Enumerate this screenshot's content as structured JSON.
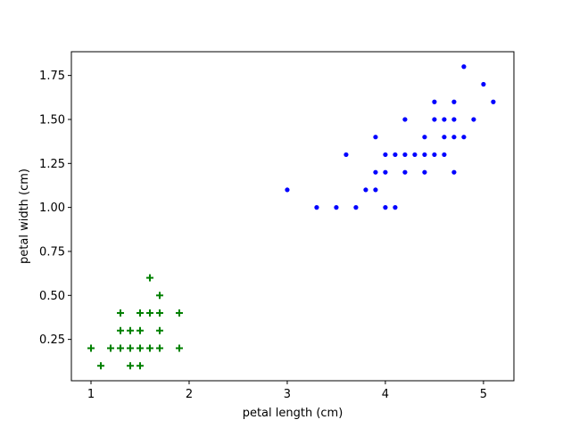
{
  "chart_data": {
    "type": "scatter",
    "title": "",
    "xlabel": "petal length (cm)",
    "ylabel": "petal width (cm)",
    "xlim": [
      0.8,
      5.31
    ],
    "ylim": [
      0.015,
      1.885
    ],
    "xticks": [
      1,
      2,
      3,
      4,
      5
    ],
    "xtick_labels": [
      "1",
      "2",
      "3",
      "4",
      "5"
    ],
    "yticks": [
      0.25,
      0.5,
      0.75,
      1.0,
      1.25,
      1.5,
      1.75
    ],
    "ytick_labels": [
      "0.25",
      "0.50",
      "0.75",
      "1.00",
      "1.25",
      "1.50",
      "1.75"
    ],
    "grid": false,
    "legend": "none",
    "series": [
      {
        "marker": "plus",
        "color": "#008000",
        "points": [
          [
            1.0,
            0.2
          ],
          [
            1.1,
            0.1
          ],
          [
            1.2,
            0.2
          ],
          [
            1.3,
            0.2
          ],
          [
            1.3,
            0.3
          ],
          [
            1.3,
            0.4
          ],
          [
            1.4,
            0.1
          ],
          [
            1.4,
            0.2
          ],
          [
            1.4,
            0.3
          ],
          [
            1.5,
            0.1
          ],
          [
            1.5,
            0.2
          ],
          [
            1.5,
            0.3
          ],
          [
            1.5,
            0.4
          ],
          [
            1.6,
            0.2
          ],
          [
            1.6,
            0.4
          ],
          [
            1.6,
            0.6
          ],
          [
            1.7,
            0.2
          ],
          [
            1.7,
            0.3
          ],
          [
            1.7,
            0.4
          ],
          [
            1.7,
            0.5
          ],
          [
            1.9,
            0.2
          ],
          [
            1.9,
            0.4
          ]
        ]
      },
      {
        "marker": "dot",
        "color": "#0000ff",
        "points": [
          [
            3.0,
            1.1
          ],
          [
            3.3,
            1.0
          ],
          [
            3.5,
            1.0
          ],
          [
            3.6,
            1.3
          ],
          [
            3.7,
            1.0
          ],
          [
            3.8,
            1.1
          ],
          [
            3.9,
            1.1
          ],
          [
            3.9,
            1.2
          ],
          [
            3.9,
            1.4
          ],
          [
            4.0,
            1.0
          ],
          [
            4.0,
            1.2
          ],
          [
            4.0,
            1.3
          ],
          [
            4.1,
            1.0
          ],
          [
            4.1,
            1.3
          ],
          [
            4.2,
            1.2
          ],
          [
            4.2,
            1.3
          ],
          [
            4.2,
            1.5
          ],
          [
            4.3,
            1.3
          ],
          [
            4.4,
            1.2
          ],
          [
            4.4,
            1.3
          ],
          [
            4.4,
            1.4
          ],
          [
            4.5,
            1.3
          ],
          [
            4.5,
            1.5
          ],
          [
            4.5,
            1.6
          ],
          [
            4.6,
            1.3
          ],
          [
            4.6,
            1.4
          ],
          [
            4.6,
            1.5
          ],
          [
            4.7,
            1.2
          ],
          [
            4.7,
            1.4
          ],
          [
            4.7,
            1.5
          ],
          [
            4.7,
            1.6
          ],
          [
            4.8,
            1.4
          ],
          [
            4.8,
            1.8
          ],
          [
            4.9,
            1.5
          ],
          [
            5.0,
            1.7
          ],
          [
            5.1,
            1.6
          ]
        ]
      }
    ]
  }
}
